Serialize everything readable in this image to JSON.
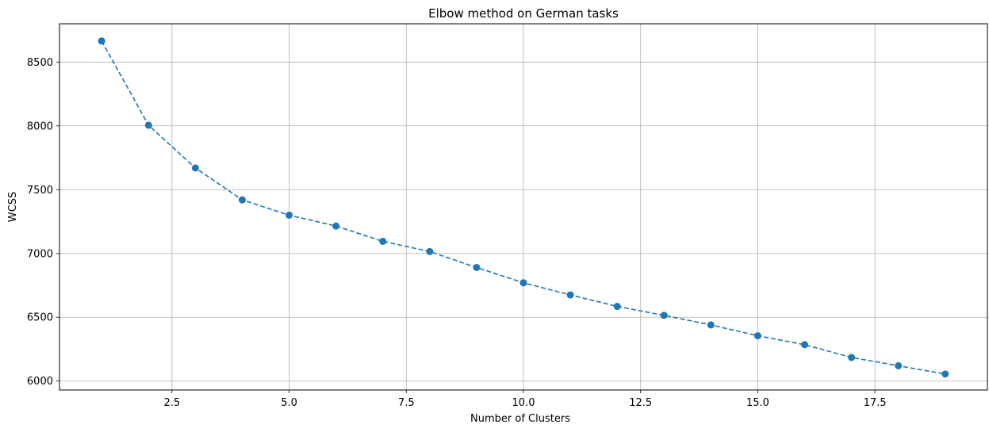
{
  "chart_data": {
    "type": "line",
    "title": "Elbow method on German tasks",
    "xlabel": "Number of Clusters",
    "ylabel": "WCSS",
    "xlim": [
      0.1,
      19.9
    ],
    "ylim": [
      5930,
      8800
    ],
    "xticks": [
      2.5,
      5.0,
      7.5,
      10.0,
      12.5,
      15.0,
      17.5
    ],
    "xtick_labels": [
      "2.5",
      "5.0",
      "7.5",
      "10.0",
      "12.5",
      "15.0",
      "17.5"
    ],
    "yticks": [
      6000,
      6500,
      7000,
      7500,
      8000,
      8500
    ],
    "ytick_labels": [
      "6000",
      "6500",
      "7000",
      "7500",
      "8000",
      "8500"
    ],
    "grid": true,
    "line_style": "dashed",
    "marker": "circle",
    "color": "#1f77b4",
    "series": [
      {
        "x": [
          1,
          2,
          3,
          4,
          5,
          6,
          7,
          8,
          9,
          10,
          11,
          12,
          13,
          14,
          15,
          16,
          17,
          18,
          19
        ],
        "values": [
          8665,
          8005,
          7670,
          7420,
          7300,
          7215,
          7095,
          7015,
          6890,
          6770,
          6675,
          6585,
          6515,
          6440,
          6355,
          6285,
          6185,
          6120,
          6055
        ]
      }
    ]
  }
}
